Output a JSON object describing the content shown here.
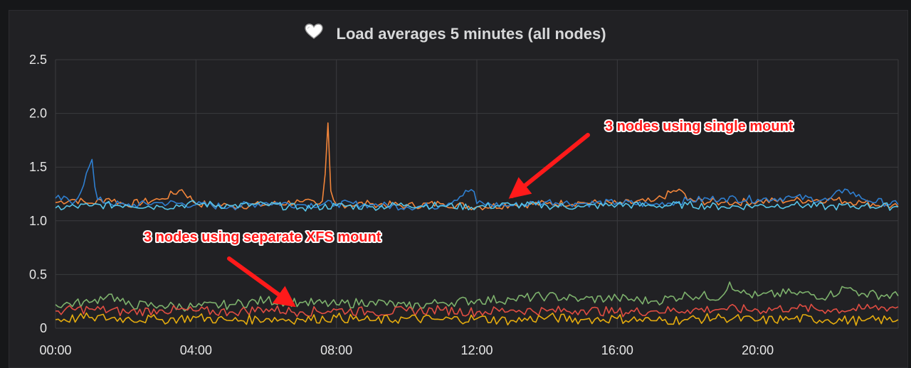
{
  "chart_data": {
    "type": "line",
    "title": "Load averages 5 minutes (all nodes)",
    "title_icon": "heart-icon",
    "x_ticks": [
      "00:00",
      "04:00",
      "08:00",
      "12:00",
      "16:00",
      "20:00"
    ],
    "x_range_hours": [
      0,
      24
    ],
    "y_ticks": [
      "2.5",
      "2.0",
      "1.5",
      "1.0",
      "0.5",
      "0"
    ],
    "ylim": [
      0,
      2.5
    ],
    "grid": true,
    "legend": "none",
    "series": [
      {
        "color": "#f2853a",
        "points": [
          [
            0,
            1.17
          ],
          [
            0.5,
            1.2
          ],
          [
            1,
            1.16
          ],
          [
            1.5,
            1.21
          ],
          [
            2,
            1.15
          ],
          [
            3,
            1.2
          ],
          [
            3.6,
            1.29
          ],
          [
            4,
            1.16
          ],
          [
            5,
            1.14
          ],
          [
            6,
            1.15
          ],
          [
            7,
            1.18
          ],
          [
            7.5,
            1.15
          ],
          [
            7.65,
            1.2
          ],
          [
            7.75,
            1.99
          ],
          [
            7.85,
            1.2
          ],
          [
            8,
            1.15
          ],
          [
            9,
            1.16
          ],
          [
            10,
            1.14
          ],
          [
            11,
            1.16
          ],
          [
            12,
            1.13
          ],
          [
            13,
            1.15
          ],
          [
            14,
            1.16
          ],
          [
            15,
            1.17
          ],
          [
            16,
            1.16
          ],
          [
            17,
            1.18
          ],
          [
            17.8,
            1.3
          ],
          [
            18,
            1.19
          ],
          [
            19,
            1.17
          ],
          [
            20,
            1.18
          ],
          [
            21,
            1.19
          ],
          [
            22,
            1.2
          ],
          [
            23,
            1.17
          ],
          [
            24,
            1.13
          ]
        ]
      },
      {
        "color": "#2f7fd0",
        "points": [
          [
            0,
            1.21
          ],
          [
            0.6,
            1.18
          ],
          [
            1.05,
            1.58
          ],
          [
            1.15,
            1.2
          ],
          [
            1.5,
            1.17
          ],
          [
            2,
            1.14
          ],
          [
            3,
            1.17
          ],
          [
            4,
            1.15
          ],
          [
            5,
            1.13
          ],
          [
            6,
            1.17
          ],
          [
            7,
            1.15
          ],
          [
            8,
            1.16
          ],
          [
            9,
            1.15
          ],
          [
            10,
            1.13
          ],
          [
            11,
            1.14
          ],
          [
            11.9,
            1.3
          ],
          [
            12,
            1.16
          ],
          [
            13,
            1.14
          ],
          [
            14,
            1.18
          ],
          [
            15,
            1.16
          ],
          [
            16,
            1.17
          ],
          [
            17,
            1.15
          ],
          [
            18,
            1.19
          ],
          [
            19,
            1.21
          ],
          [
            20,
            1.2
          ],
          [
            21,
            1.22
          ],
          [
            22,
            1.19
          ],
          [
            22.5,
            1.3
          ],
          [
            23,
            1.2
          ],
          [
            24,
            1.15
          ]
        ]
      },
      {
        "color": "#56c4e8",
        "points": [
          [
            0,
            1.12
          ],
          [
            1,
            1.14
          ],
          [
            2,
            1.15
          ],
          [
            3,
            1.13
          ],
          [
            4,
            1.16
          ],
          [
            5,
            1.14
          ],
          [
            6,
            1.15
          ],
          [
            7,
            1.12
          ],
          [
            8,
            1.14
          ],
          [
            9,
            1.13
          ],
          [
            10,
            1.15
          ],
          [
            11,
            1.14
          ],
          [
            12,
            1.13
          ],
          [
            13,
            1.15
          ],
          [
            14,
            1.14
          ],
          [
            15,
            1.13
          ],
          [
            16,
            1.15
          ],
          [
            17,
            1.14
          ],
          [
            18,
            1.15
          ],
          [
            19,
            1.13
          ],
          [
            20,
            1.14
          ],
          [
            21,
            1.15
          ],
          [
            22,
            1.13
          ],
          [
            23,
            1.14
          ],
          [
            24,
            1.13
          ]
        ]
      },
      {
        "color": "#7eb26d",
        "points": [
          [
            0,
            0.22
          ],
          [
            1,
            0.24
          ],
          [
            1.5,
            0.32
          ],
          [
            2,
            0.22
          ],
          [
            3,
            0.21
          ],
          [
            4,
            0.2
          ],
          [
            5,
            0.22
          ],
          [
            6,
            0.26
          ],
          [
            7,
            0.24
          ],
          [
            8,
            0.22
          ],
          [
            9,
            0.25
          ],
          [
            10,
            0.2
          ],
          [
            11,
            0.24
          ],
          [
            12,
            0.26
          ],
          [
            13,
            0.27
          ],
          [
            14,
            0.3
          ],
          [
            15,
            0.27
          ],
          [
            16,
            0.28
          ],
          [
            17,
            0.25
          ],
          [
            18,
            0.31
          ],
          [
            19,
            0.29
          ],
          [
            19.2,
            0.43
          ],
          [
            19.5,
            0.33
          ],
          [
            20,
            0.3
          ],
          [
            21,
            0.33
          ],
          [
            22,
            0.3
          ],
          [
            22.5,
            0.38
          ],
          [
            23,
            0.32
          ],
          [
            24,
            0.3
          ]
        ]
      },
      {
        "color": "#e24d42",
        "points": [
          [
            0,
            0.16
          ],
          [
            1,
            0.18
          ],
          [
            2,
            0.15
          ],
          [
            3,
            0.17
          ],
          [
            4,
            0.16
          ],
          [
            5,
            0.15
          ],
          [
            6,
            0.18
          ],
          [
            7,
            0.15
          ],
          [
            8,
            0.17
          ],
          [
            9,
            0.15
          ],
          [
            10,
            0.16
          ],
          [
            11,
            0.17
          ],
          [
            12,
            0.15
          ],
          [
            13,
            0.17
          ],
          [
            14,
            0.16
          ],
          [
            15,
            0.17
          ],
          [
            16,
            0.15
          ],
          [
            17,
            0.16
          ],
          [
            18,
            0.17
          ],
          [
            19,
            0.18
          ],
          [
            20,
            0.17
          ],
          [
            21,
            0.19
          ],
          [
            22,
            0.17
          ],
          [
            23,
            0.18
          ],
          [
            24,
            0.2
          ]
        ]
      },
      {
        "color": "#e5ac0e",
        "points": [
          [
            0,
            0.08
          ],
          [
            1,
            0.1
          ],
          [
            2,
            0.09
          ],
          [
            3,
            0.08
          ],
          [
            4,
            0.1
          ],
          [
            5,
            0.07
          ],
          [
            6,
            0.09
          ],
          [
            7,
            0.08
          ],
          [
            8,
            0.1
          ],
          [
            9,
            0.07
          ],
          [
            10,
            0.09
          ],
          [
            11,
            0.08
          ],
          [
            12,
            0.09
          ],
          [
            13,
            0.07
          ],
          [
            14,
            0.1
          ],
          [
            15,
            0.08
          ],
          [
            16,
            0.09
          ],
          [
            17,
            0.07
          ],
          [
            18,
            0.08
          ],
          [
            19,
            0.1
          ],
          [
            20,
            0.07
          ],
          [
            21,
            0.09
          ],
          [
            22,
            0.08
          ],
          [
            23,
            0.07
          ],
          [
            24,
            0.08
          ]
        ]
      }
    ],
    "annotations": [
      {
        "text": "3 nodes using single mount",
        "arrow_to": [
          13,
          1.23
        ]
      },
      {
        "text": "3 nodes using separate XFS mount",
        "arrow_to": [
          6.75,
          0.22
        ]
      }
    ]
  }
}
